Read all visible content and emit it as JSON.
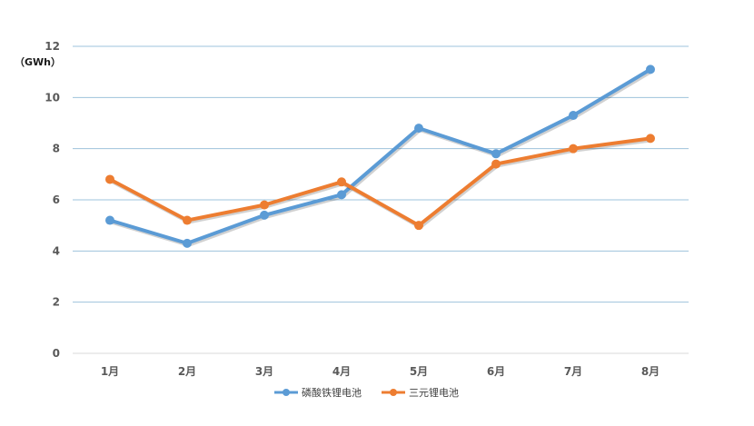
{
  "chart_data": {
    "type": "line",
    "title": "",
    "xlabel": "",
    "ylabel": "（GWh）",
    "categories": [
      "1月",
      "2月",
      "3月",
      "4月",
      "5月",
      "6月",
      "7月",
      "8月"
    ],
    "y_ticks": [
      "0",
      "2",
      "4",
      "6",
      "8",
      "10",
      "12"
    ],
    "ylim": [
      0,
      12
    ],
    "grid": true,
    "legend_position": "bottom",
    "series": [
      {
        "name": "磷酸铁锂电池",
        "color": "#5b9bd5",
        "values": [
          5.2,
          4.3,
          5.4,
          6.2,
          8.8,
          7.8,
          9.3,
          11.1
        ]
      },
      {
        "name": "三元锂电池",
        "color": "#ed7d31",
        "values": [
          6.8,
          5.2,
          5.8,
          6.7,
          5.0,
          7.4,
          8.0,
          8.4
        ]
      }
    ]
  }
}
